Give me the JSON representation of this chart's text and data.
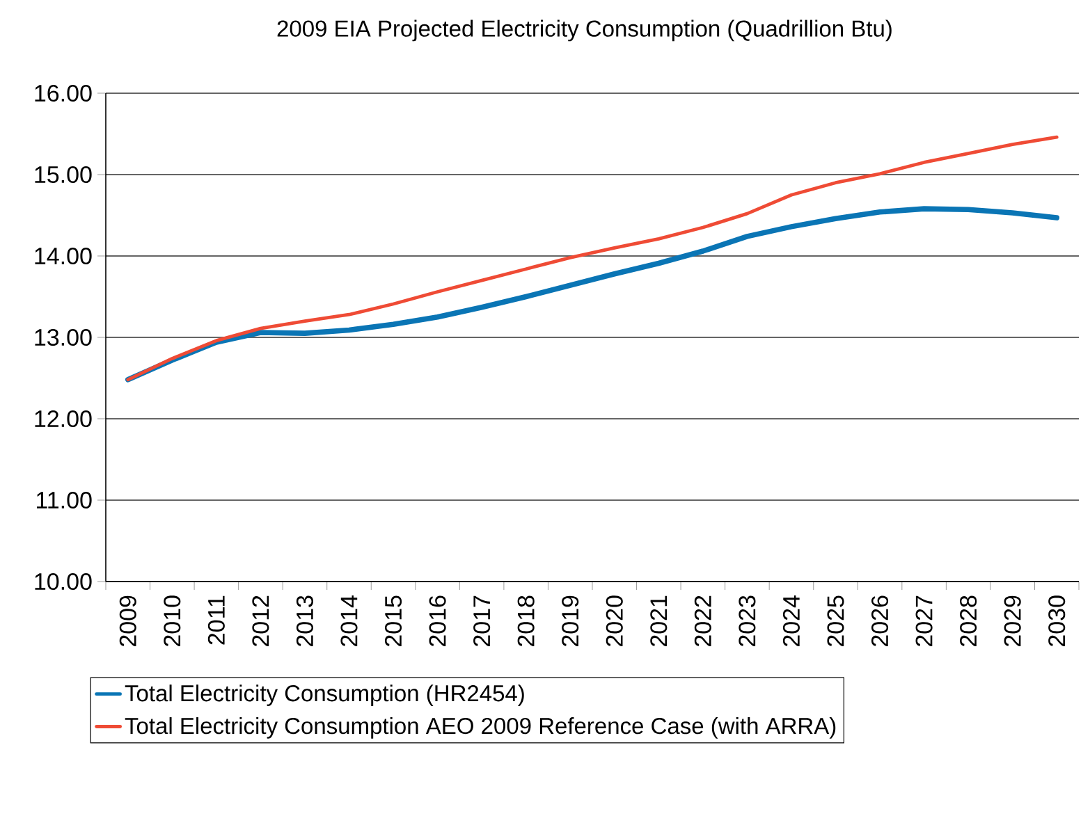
{
  "chart_data": {
    "type": "line",
    "title": "2009 EIA Projected Electricity Consumption (Quadrillion Btu)",
    "categories": [
      "2009",
      "2010",
      "2011",
      "2012",
      "2013",
      "2014",
      "2015",
      "2016",
      "2017",
      "2018",
      "2019",
      "2020",
      "2021",
      "2022",
      "2023",
      "2024",
      "2025",
      "2026",
      "2027",
      "2028",
      "2029",
      "2030"
    ],
    "series": [
      {
        "name": "Total Electricity Consumption (HR2454)",
        "color": "#0a75b5",
        "values": [
          12.48,
          12.72,
          12.94,
          13.06,
          13.05,
          13.09,
          13.16,
          13.25,
          13.37,
          13.5,
          13.64,
          13.78,
          13.91,
          14.06,
          14.24,
          14.36,
          14.46,
          14.54,
          14.58,
          14.57,
          14.53,
          14.47
        ]
      },
      {
        "name": "Total Electricity Consumption AEO 2009 Reference Case (with ARRA)",
        "color": "#ef4b35",
        "values": [
          12.48,
          12.74,
          12.96,
          13.11,
          13.2,
          13.28,
          13.41,
          13.56,
          13.7,
          13.84,
          13.98,
          14.1,
          14.21,
          14.35,
          14.52,
          14.75,
          14.9,
          15.01,
          15.15,
          15.26,
          15.37,
          15.46
        ]
      }
    ],
    "ylim": [
      10,
      16
    ],
    "yticks": [
      {
        "value": 10,
        "label": "10.00"
      },
      {
        "value": 11,
        "label": "11.00"
      },
      {
        "value": 12,
        "label": "12.00"
      },
      {
        "value": 13,
        "label": "13.00"
      },
      {
        "value": 14,
        "label": "14.00"
      },
      {
        "value": 15,
        "label": "15.00"
      },
      {
        "value": 16,
        "label": "16.00"
      }
    ],
    "grid": "y",
    "legend": "bottom"
  }
}
